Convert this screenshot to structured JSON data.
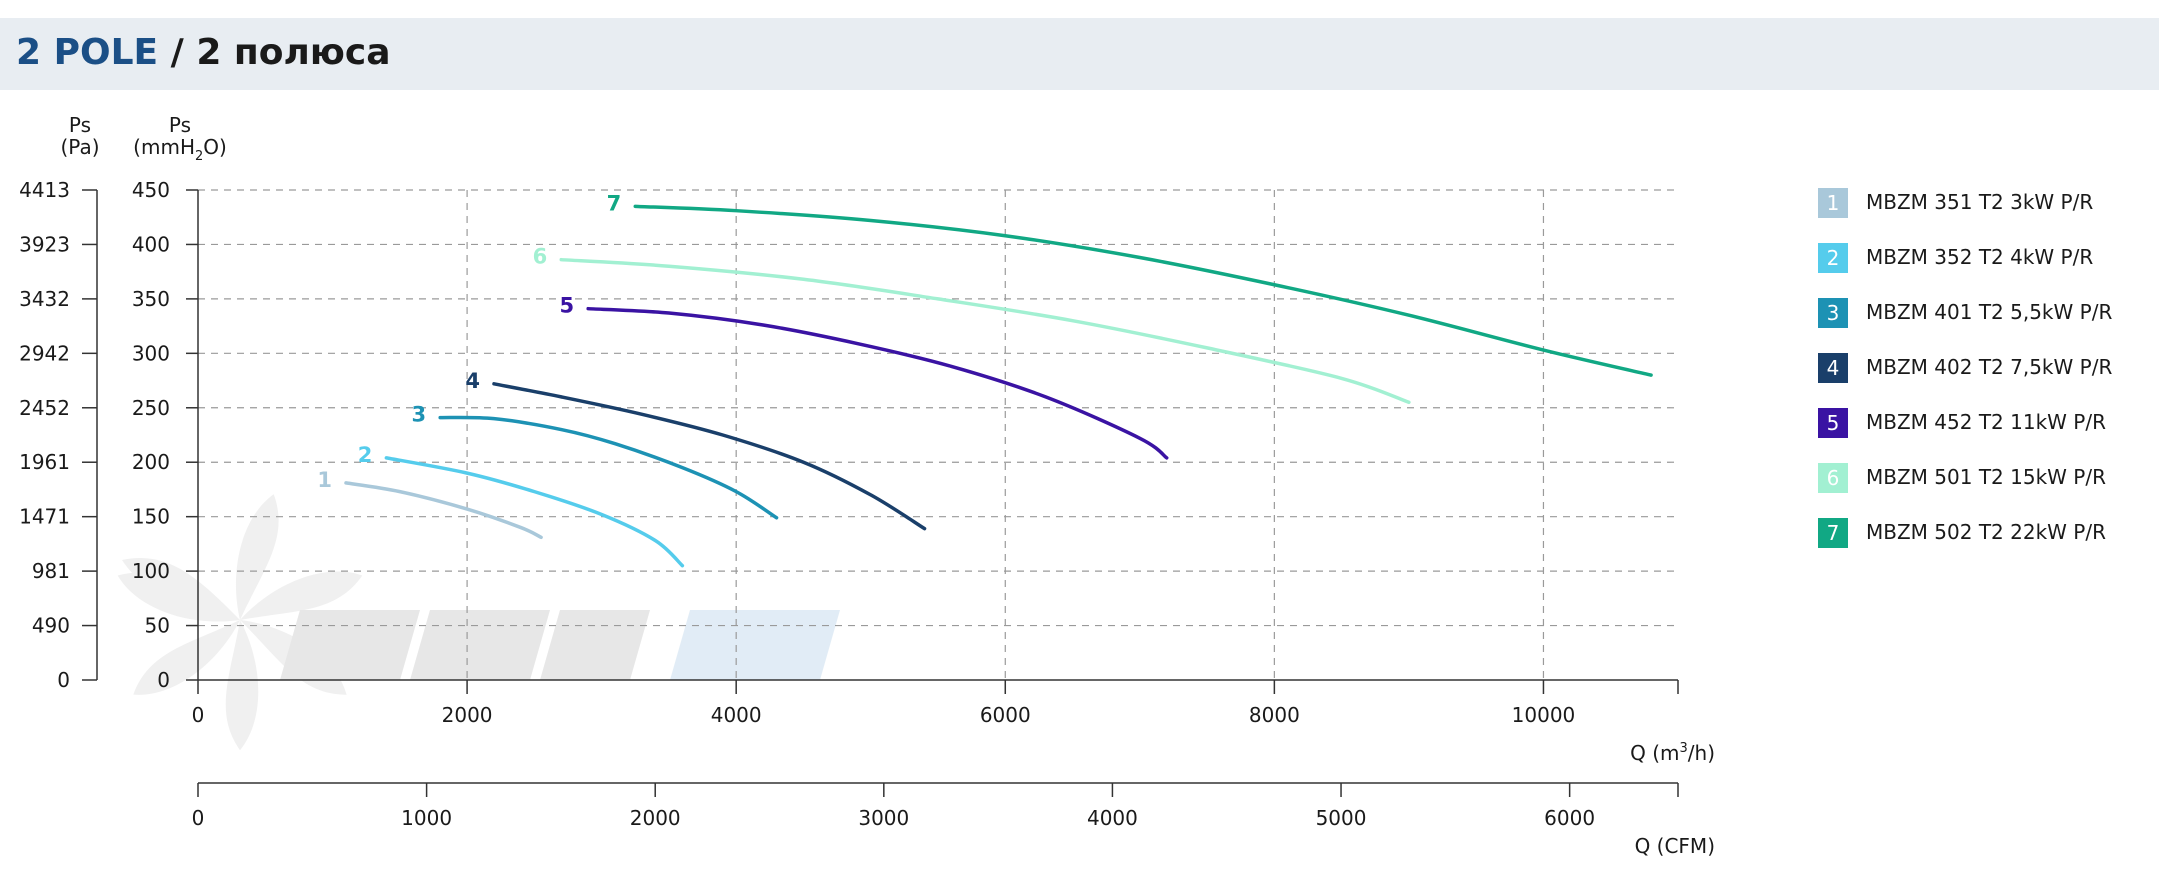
{
  "header": {
    "title_en": "2 POLE",
    "title_ru": "/ 2 полюса"
  },
  "chart_data": {
    "type": "line",
    "y_axis_pa": {
      "label": "Ps",
      "unit": "(Pa)",
      "ticks": [
        "4413",
        "3923",
        "3432",
        "2942",
        "2452",
        "1961",
        "1471",
        "981",
        "490",
        "0"
      ]
    },
    "y_axis_mmh2o": {
      "label": "Ps",
      "unit_main": "(mmH",
      "unit_sub": "2",
      "unit_end": "O)",
      "ticks": [
        450,
        400,
        350,
        300,
        250,
        200,
        150,
        100,
        50,
        0
      ],
      "ylim": [
        0,
        450
      ]
    },
    "x_axis_m3h": {
      "label_main": "Q (m",
      "label_sup": "3",
      "label_end": "/h)",
      "ticks": [
        0,
        2000,
        4000,
        6000,
        8000,
        10000
      ],
      "xlim": [
        0,
        11000
      ]
    },
    "x_axis_cfm": {
      "label": "Q (CFM)",
      "ticks": [
        0,
        1000,
        2000,
        3000,
        4000,
        5000,
        6000
      ],
      "xlim": [
        0,
        6474
      ]
    },
    "grid": true,
    "legend_position": "right",
    "series": [
      {
        "id": "1",
        "name": "MBZM 351 T2 3kW P/R",
        "color": "#a9c8da",
        "x": [
          1100,
          1500,
          2000,
          2400,
          2550
        ],
        "y": [
          181,
          173,
          157,
          140,
          131
        ]
      },
      {
        "id": "2",
        "name": "MBZM 352 T2 4kW P/R",
        "color": "#55ccec",
        "x": [
          1400,
          2000,
          2500,
          3000,
          3400,
          3600
        ],
        "y": [
          204,
          190,
          173,
          152,
          128,
          105
        ]
      },
      {
        "id": "3",
        "name": "MBZM 401 T2 5,5kW P/R",
        "color": "#1d92b4",
        "x": [
          1800,
          2200,
          2700,
          3100,
          3600,
          4000,
          4300
        ],
        "y": [
          241,
          240,
          230,
          217,
          195,
          173,
          149
        ]
      },
      {
        "id": "4",
        "name": "MBZM 402 T2 7,5kW P/R",
        "color": "#1a3f6a",
        "x": [
          2200,
          2700,
          3300,
          3900,
          4500,
          5000,
          5400
        ],
        "y": [
          272,
          260,
          244,
          225,
          200,
          170,
          139
        ]
      },
      {
        "id": "5",
        "name": "MBZM 452 T2 11kW P/R",
        "color": "#3a13a3",
        "x": [
          2900,
          3500,
          4200,
          4900,
          5600,
          6300,
          7000,
          7200
        ],
        "y": [
          341,
          337,
          326,
          309,
          288,
          260,
          222,
          204
        ]
      },
      {
        "id": "6",
        "name": "MBZM 501 T2 15kW P/R",
        "color": "#a2f0d2",
        "x": [
          2700,
          3500,
          4500,
          5500,
          6500,
          7500,
          8500,
          9000
        ],
        "y": [
          386,
          380,
          368,
          350,
          330,
          305,
          277,
          255
        ]
      },
      {
        "id": "7",
        "name": "MBZM 502 T2 22kW P/R",
        "color": "#11a884",
        "x": [
          3250,
          4000,
          5000,
          6000,
          7000,
          8000,
          9000,
          10000,
          10800
        ],
        "y": [
          435,
          431,
          422,
          408,
          388,
          363,
          335,
          303,
          280
        ]
      }
    ]
  }
}
